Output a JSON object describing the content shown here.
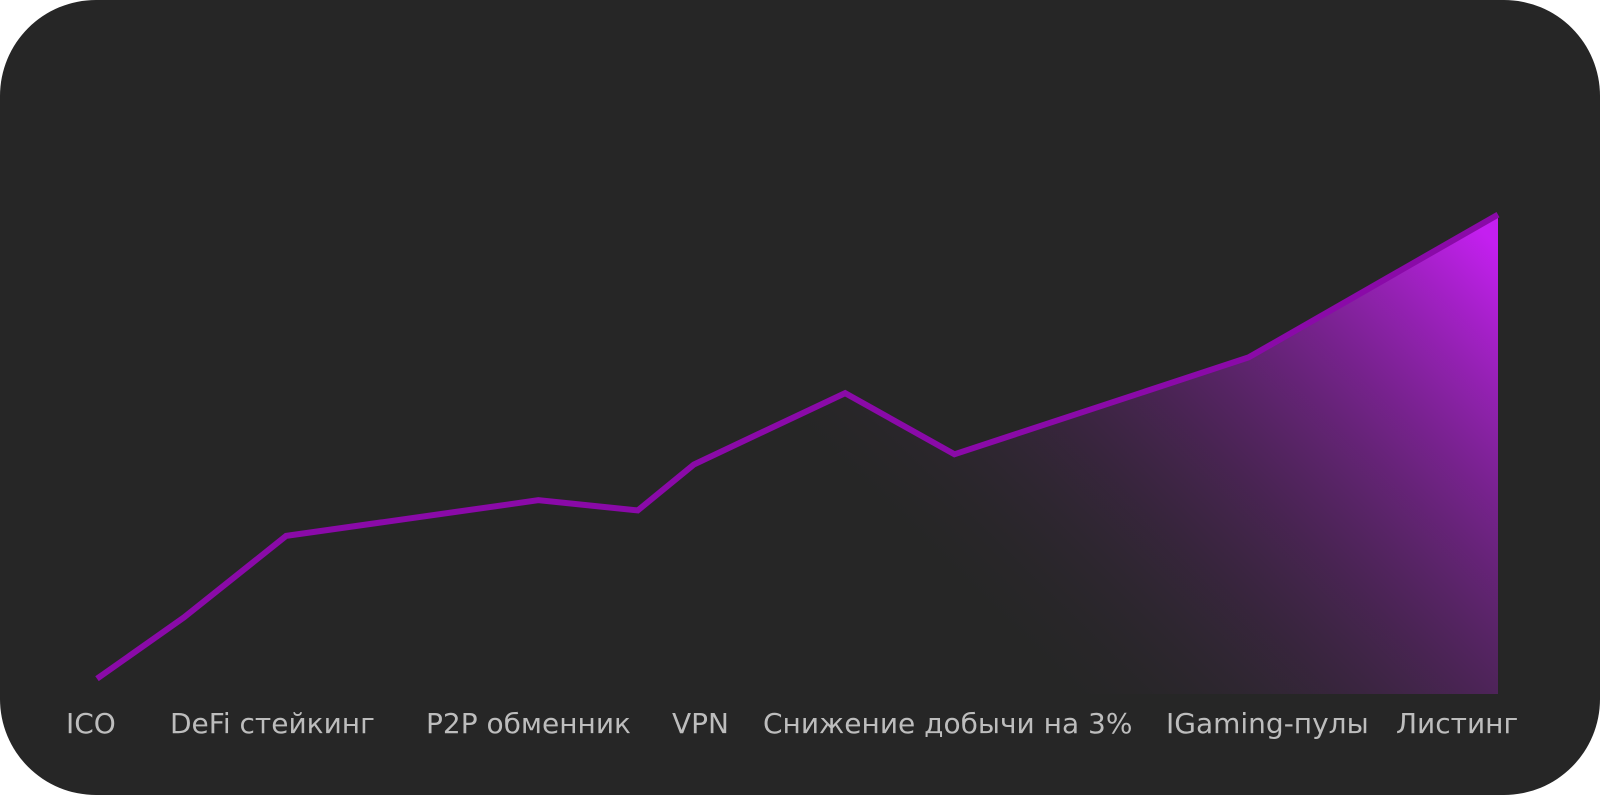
{
  "chart_data": {
    "type": "area",
    "x": [
      0,
      6.2,
      13.5,
      31.5,
      38.6,
      42.6,
      53.4,
      61.2,
      82.2,
      100
    ],
    "values": [
      3,
      15,
      31,
      38,
      36,
      45,
      59,
      47,
      66,
      94
    ],
    "xlim": [
      0,
      100
    ],
    "ylim": [
      0,
      100
    ],
    "color": "#8a0aa8",
    "fill_color": "#c41ff0",
    "milestones": [
      "ICO",
      "DeFi стейкинг",
      "P2P обменник",
      "VPN",
      "Снижение добычи на 3%",
      "IGaming-пулы",
      "Листинг"
    ]
  }
}
